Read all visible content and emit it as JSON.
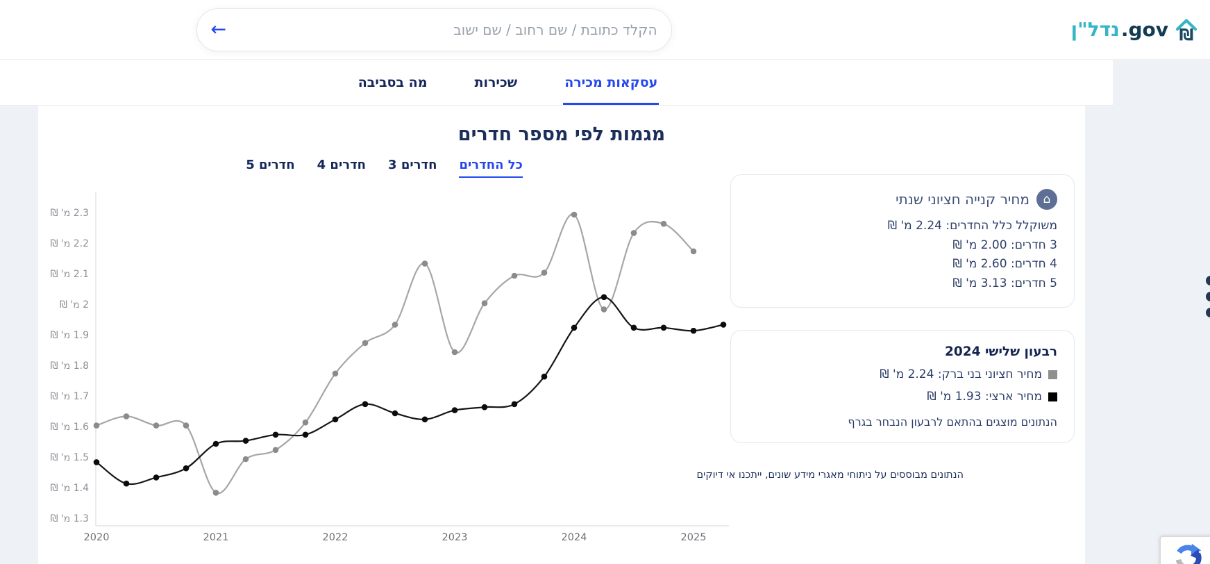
{
  "header": {
    "logo": {
      "hebrew": "נדל\"ן",
      "latin": ".gov",
      "teal": "#35b5c5",
      "navy": "#133b52",
      "shekel": "₪"
    },
    "search": {
      "placeholder": "הקלד כתובת / שם רחוב / שם ישוב",
      "back_arrow": "←"
    }
  },
  "nav": {
    "tabs": [
      {
        "label": "עסקאות מכירה",
        "active": true
      },
      {
        "label": "שכירות",
        "active": false
      },
      {
        "label": "מה בסביבה",
        "active": false
      }
    ]
  },
  "chart_section": {
    "title": "מגמות לפי מספר חדרים",
    "room_tabs": [
      {
        "label": "כל החדרים",
        "active": true
      },
      {
        "label": "3 חדרים",
        "active": false
      },
      {
        "label": "4 חדרים",
        "active": false
      },
      {
        "label": "5 חדרים",
        "active": false
      }
    ]
  },
  "chart_data": {
    "type": "line",
    "title": "מגמות לפי מספר חדרים",
    "x_unit": "quarter",
    "x_start": "2020-Q1",
    "x_tick_labels": [
      "2020",
      "2021",
      "2022",
      "2023",
      "2024",
      "2025"
    ],
    "y_ticks": [
      "2.3",
      "2.2",
      "2.1",
      "2",
      "1.9",
      "1.8",
      "1.7",
      "1.6",
      "1.5",
      "1.4",
      "1.3"
    ],
    "y_tick_suffix": "מ' ₪",
    "ylim": [
      1.3,
      2.3
    ],
    "grid": false,
    "series": [
      {
        "name": "מחיר חציוני בני ברק",
        "line_color": "#a6a6a6",
        "dot_color": "#8b8b8b",
        "values": [
          1.61,
          1.64,
          1.61,
          1.61,
          1.39,
          1.5,
          1.53,
          1.62,
          1.78,
          1.88,
          1.94,
          2.14,
          1.85,
          2.01,
          2.1,
          2.11,
          2.3,
          1.99,
          2.24,
          2.27,
          2.18
        ]
      },
      {
        "name": "מחיר ארצי",
        "line_color": "#151515",
        "dot_color": "#0c0c0c",
        "values": [
          1.49,
          1.42,
          1.44,
          1.47,
          1.55,
          1.56,
          1.58,
          1.58,
          1.63,
          1.68,
          1.65,
          1.63,
          1.66,
          1.67,
          1.68,
          1.77,
          1.93,
          2.03,
          1.93,
          1.93,
          1.92,
          1.94
        ]
      }
    ]
  },
  "panels": {
    "annual": {
      "icon_glyph": "⌂",
      "title": "מחיר קנייה חציוני שנתי",
      "lines": [
        {
          "text": "משוקלל כלל החדרים: 2.24 מ' ₪"
        },
        {
          "text": "3 חדרים: 2.00 מ' ₪"
        },
        {
          "text": "4 חדרים: 2.60 מ' ₪"
        },
        {
          "text": "5 חדרים: 3.13 מ' ₪"
        }
      ]
    },
    "quarter": {
      "title": "רבעון שלישי 2024",
      "legend": [
        {
          "text": "מחיר חציוני בני ברק: 2.24 מ' ₪",
          "color": "#8f8f8f"
        },
        {
          "text": "מחיר ארצי: 1.93 מ' ₪",
          "color": "#000000"
        }
      ],
      "note": "הנתונים מוצגים בהתאם לרבעון הנבחר בגרף"
    }
  },
  "disclaimer": "הנתונים מבוססים על ניתוחי מאגרי מידע שונים, ייתכנו אי דיוקים"
}
